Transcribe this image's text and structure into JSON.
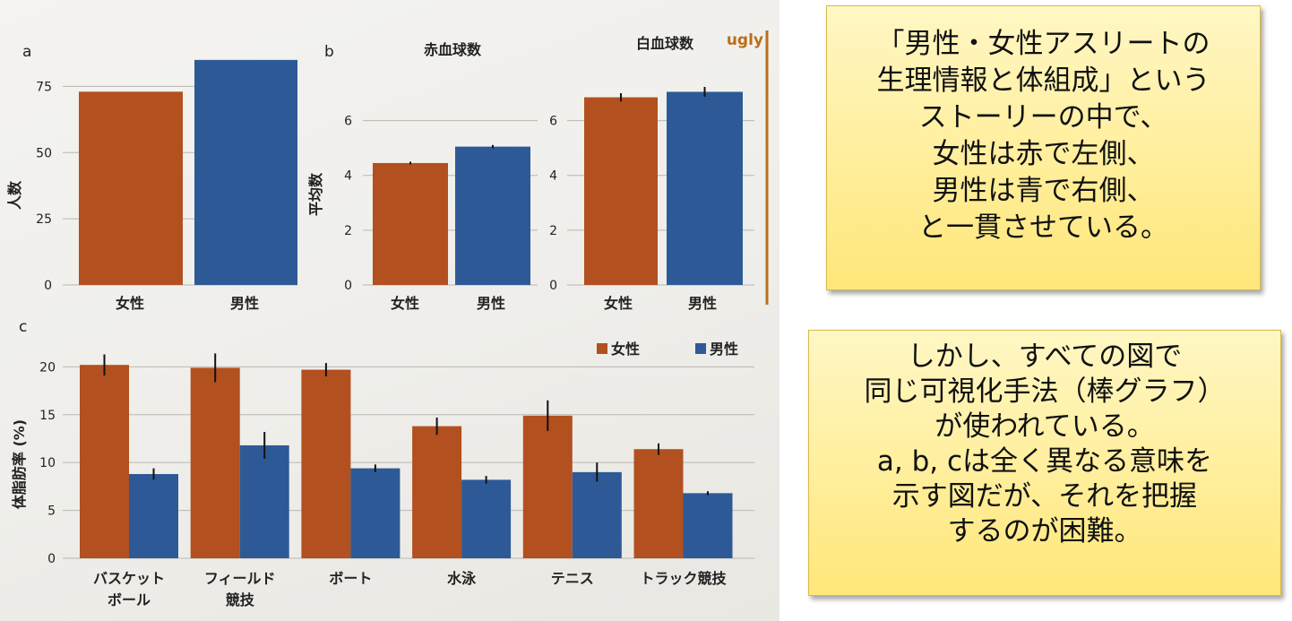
{
  "colors": {
    "female": "#b2501f",
    "male": "#2d5a97",
    "ugly": "#b86f1c"
  },
  "ugly_label": "ugly",
  "chart_data": [
    {
      "id": "a",
      "panel_label": "a",
      "type": "bar",
      "title": "",
      "ylabel": "人数",
      "categories": [
        "女性",
        "男性"
      ],
      "values": [
        73,
        85
      ],
      "yticks": [
        0,
        25,
        50,
        75
      ],
      "ylim": [
        0,
        88
      ]
    },
    {
      "id": "b_red",
      "panel_label": "b",
      "type": "bar",
      "title": "赤血球数",
      "ylabel": "平均数",
      "categories": [
        "女性",
        "男性"
      ],
      "values": [
        4.45,
        5.05
      ],
      "errors": [
        0.05,
        0.06
      ],
      "yticks": [
        0,
        2,
        4,
        6
      ],
      "ylim": [
        0,
        7
      ]
    },
    {
      "id": "b_white",
      "panel_label": "",
      "type": "bar",
      "title": "白血球数",
      "ylabel": "",
      "categories": [
        "女性",
        "男性"
      ],
      "values": [
        6.85,
        7.05
      ],
      "errors": [
        0.15,
        0.18
      ],
      "yticks": [
        0,
        2,
        4,
        6
      ],
      "ylim": [
        0,
        7
      ]
    },
    {
      "id": "c",
      "panel_label": "c",
      "type": "bar",
      "title": "",
      "ylabel": "体脂肪率 (%)",
      "categories": [
        "バスケット\nボール",
        "フィールド\n競技",
        "ボート",
        "水泳",
        "テニス",
        "トラック競技"
      ],
      "series": [
        {
          "name": "女性",
          "values": [
            20.2,
            19.9,
            19.7,
            13.8,
            14.9,
            11.4
          ],
          "errors": [
            1.1,
            1.5,
            0.7,
            0.9,
            1.6,
            0.6
          ]
        },
        {
          "name": "男性",
          "values": [
            8.8,
            11.8,
            9.4,
            8.2,
            9.0,
            6.8
          ],
          "errors": [
            0.6,
            1.4,
            0.4,
            0.4,
            1.0,
            0.2
          ]
        }
      ],
      "yticks": [
        0,
        5,
        10,
        15,
        20
      ],
      "ylim": [
        0,
        22
      ],
      "legend": "top-right"
    }
  ],
  "notes": [
    {
      "lines": [
        "「男性・女性アスリートの",
        "生理情報と体組成」という",
        "ストーリーの中で、",
        "女性は赤で左側、",
        "男性は青で右側、",
        "と一貫させている。"
      ]
    },
    {
      "lines": [
        "しかし、すべての図で",
        "同じ可視化手法（棒グラフ）",
        "が使われている。",
        "a, b, cは全く異なる意味を",
        "示す図だが、それを把握",
        "するのが困難。"
      ]
    }
  ]
}
